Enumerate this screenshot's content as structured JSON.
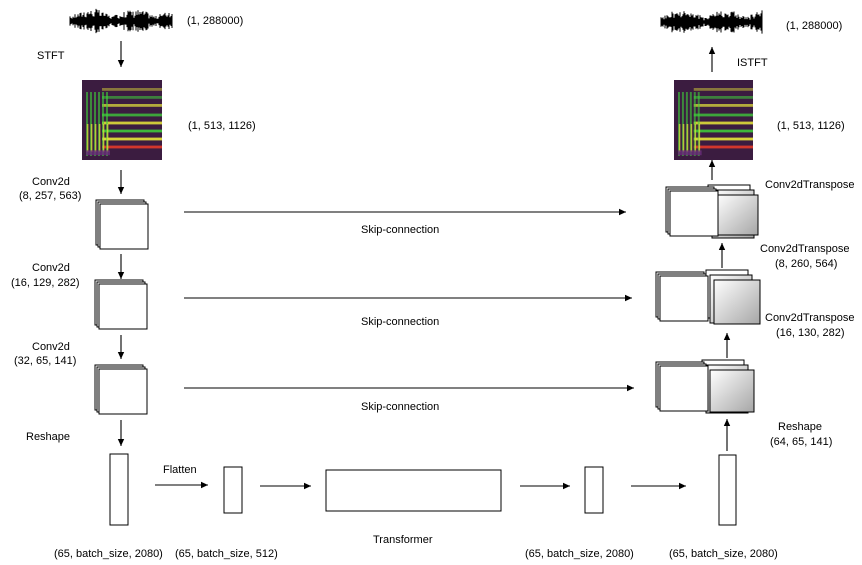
{
  "colors": {
    "line": "#000000",
    "spec_bg": "#3b1c40",
    "spec_green": "#3fd23a",
    "spec_yellow": "#e7e73a",
    "spec_red": "#e33a2a",
    "spec_purple": "#6a2c7a",
    "grad_from": "#ffffff",
    "grad_to": "#a6a6a6"
  },
  "icons": {
    "waveform": "audio-waveform-icon",
    "spectrogram": "spectrogram-image"
  },
  "labels": {
    "input_shape": "(1, 288000)",
    "output_shape": "(1, 288000)",
    "stft": "STFT",
    "istft": "ISTFT",
    "spec_in_shape": "(1, 513, 1126)",
    "spec_out_shape": "(1, 513, 1126)",
    "enc1_op": "Conv2d",
    "enc1_shape": "(8, 257, 563)",
    "enc2_op": "Conv2d",
    "enc2_shape": "(16, 129, 282)",
    "enc3_op": "Conv2d",
    "enc3_shape": "(32, 65, 141)",
    "reshape_in": "Reshape",
    "dec1_op": "Conv2dTranspose",
    "dec2_op": "Conv2dTranspose",
    "dec2_shape": "(8, 260, 564)",
    "dec3_op": "Conv2dTranspose",
    "dec3_shape": "(16, 130, 282)",
    "reshape_out": "Reshape",
    "reshape_out_shape": "(64, 65, 141)",
    "skip1": "Skip-connection",
    "skip2": "Skip-connection",
    "skip3": "Skip-connection",
    "flatten": "Flatten",
    "transformer": "Transformer",
    "bottom1": "(65, batch_size, 2080)",
    "bottom2": "(65, batch_size, 512)",
    "bottom3": "(65, batch_size, 2080)",
    "bottom4": "(65, batch_size, 2080)"
  }
}
